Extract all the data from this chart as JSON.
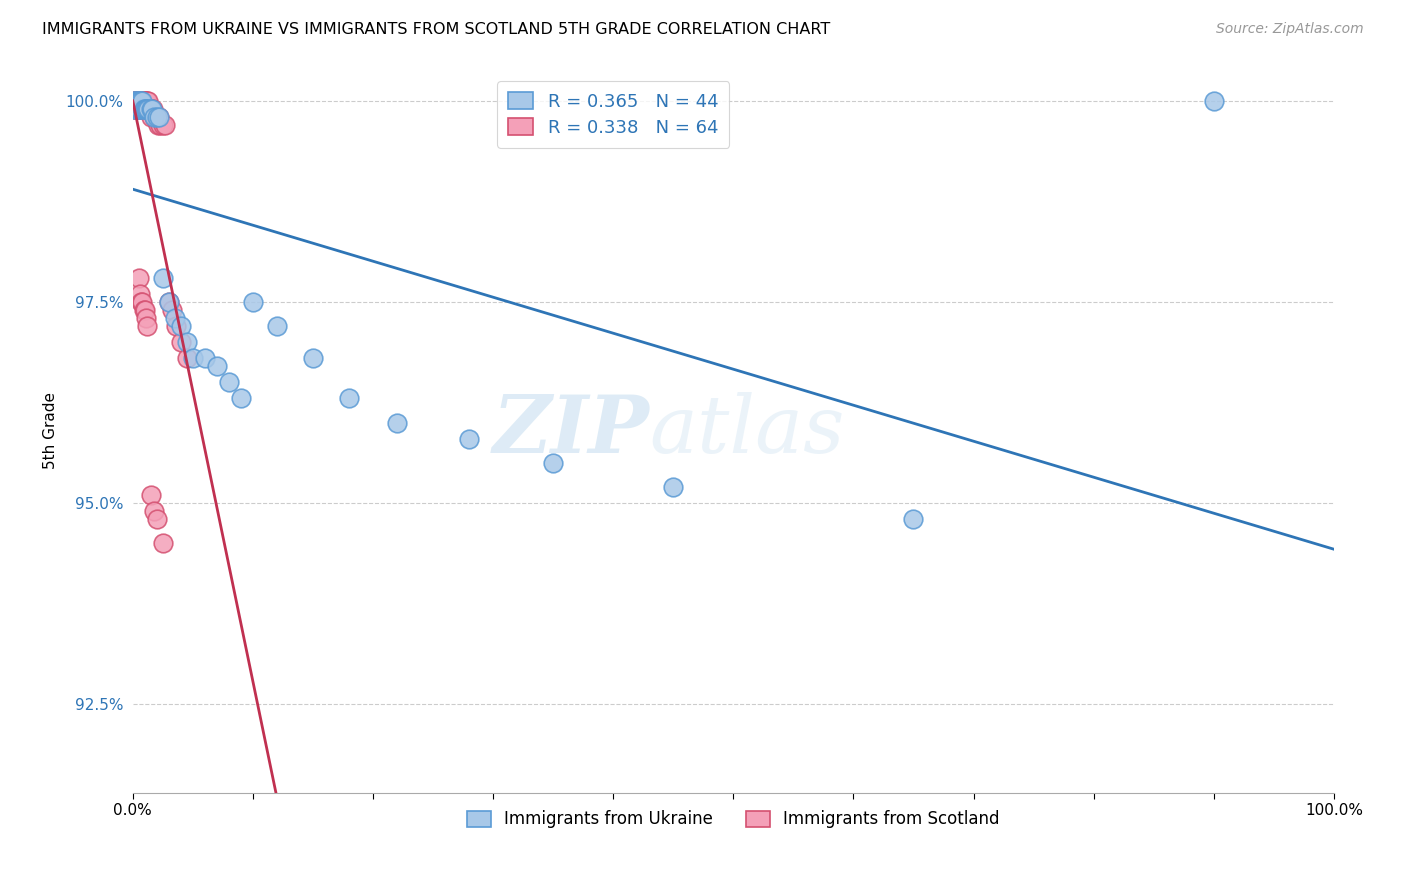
{
  "title": "IMMIGRANTS FROM UKRAINE VS IMMIGRANTS FROM SCOTLAND 5TH GRADE CORRELATION CHART",
  "source": "Source: ZipAtlas.com",
  "ylabel": "5th Grade",
  "ukraine_color": "#a8c8e8",
  "ukraine_edge": "#5b9bd5",
  "scotland_color": "#f4a0b8",
  "scotland_edge": "#d45070",
  "trendline_ukraine_color": "#2e75b6",
  "trendline_scotland_color": "#c03050",
  "R_ukraine": 0.365,
  "N_ukraine": 44,
  "R_scotland": 0.338,
  "N_scotland": 64,
  "legend_label_ukraine": "Immigrants from Ukraine",
  "legend_label_scotland": "Immigrants from Scotland",
  "watermark_zip": "ZIP",
  "watermark_atlas": "atlas",
  "xlim": [
    0.0,
    1.0
  ],
  "ylim": [
    0.914,
    1.004
  ],
  "yticks": [
    0.925,
    0.95,
    0.975,
    1.0
  ],
  "ytick_labels": [
    "92.5%",
    "95.0%",
    "97.5%",
    "100.0%"
  ],
  "ukraine_x": [
    0.001,
    0.002,
    0.002,
    0.003,
    0.003,
    0.004,
    0.004,
    0.005,
    0.005,
    0.006,
    0.006,
    0.007,
    0.008,
    0.008,
    0.009,
    0.01,
    0.011,
    0.012,
    0.013,
    0.015,
    0.016,
    0.018,
    0.02,
    0.022,
    0.025,
    0.03,
    0.035,
    0.04,
    0.045,
    0.05,
    0.06,
    0.07,
    0.08,
    0.09,
    0.1,
    0.12,
    0.15,
    0.18,
    0.22,
    0.28,
    0.35,
    0.45,
    0.65,
    0.9
  ],
  "ukraine_y": [
    1.0,
    1.0,
    0.999,
    1.0,
    0.999,
    1.0,
    0.999,
    1.0,
    0.999,
    1.0,
    0.999,
    1.0,
    0.999,
    1.0,
    0.999,
    0.999,
    0.999,
    0.999,
    0.999,
    0.999,
    0.999,
    0.998,
    0.998,
    0.998,
    0.978,
    0.975,
    0.973,
    0.972,
    0.97,
    0.968,
    0.968,
    0.967,
    0.965,
    0.963,
    0.975,
    0.972,
    0.968,
    0.963,
    0.96,
    0.958,
    0.955,
    0.952,
    0.948,
    1.0
  ],
  "scotland_x": [
    0.001,
    0.001,
    0.002,
    0.002,
    0.003,
    0.003,
    0.003,
    0.004,
    0.004,
    0.004,
    0.005,
    0.005,
    0.005,
    0.006,
    0.006,
    0.006,
    0.007,
    0.007,
    0.007,
    0.008,
    0.008,
    0.008,
    0.009,
    0.009,
    0.009,
    0.01,
    0.01,
    0.01,
    0.011,
    0.011,
    0.012,
    0.012,
    0.013,
    0.013,
    0.014,
    0.015,
    0.015,
    0.016,
    0.017,
    0.018,
    0.019,
    0.02,
    0.021,
    0.022,
    0.023,
    0.025,
    0.027,
    0.03,
    0.033,
    0.036,
    0.04,
    0.045,
    0.005,
    0.006,
    0.007,
    0.008,
    0.009,
    0.01,
    0.011,
    0.012,
    0.015,
    0.018,
    0.02,
    0.025
  ],
  "scotland_y": [
    1.0,
    0.999,
    1.0,
    0.999,
    1.0,
    0.999,
    1.0,
    1.0,
    0.999,
    1.0,
    1.0,
    0.999,
    1.0,
    1.0,
    0.999,
    1.0,
    1.0,
    0.999,
    1.0,
    1.0,
    0.999,
    1.0,
    1.0,
    0.999,
    1.0,
    1.0,
    0.999,
    1.0,
    1.0,
    0.999,
    1.0,
    0.999,
    1.0,
    0.999,
    0.999,
    0.999,
    0.998,
    0.999,
    0.999,
    0.998,
    0.998,
    0.998,
    0.997,
    0.998,
    0.997,
    0.997,
    0.997,
    0.975,
    0.974,
    0.972,
    0.97,
    0.968,
    0.978,
    0.976,
    0.975,
    0.975,
    0.974,
    0.974,
    0.973,
    0.972,
    0.951,
    0.949,
    0.948,
    0.945
  ]
}
